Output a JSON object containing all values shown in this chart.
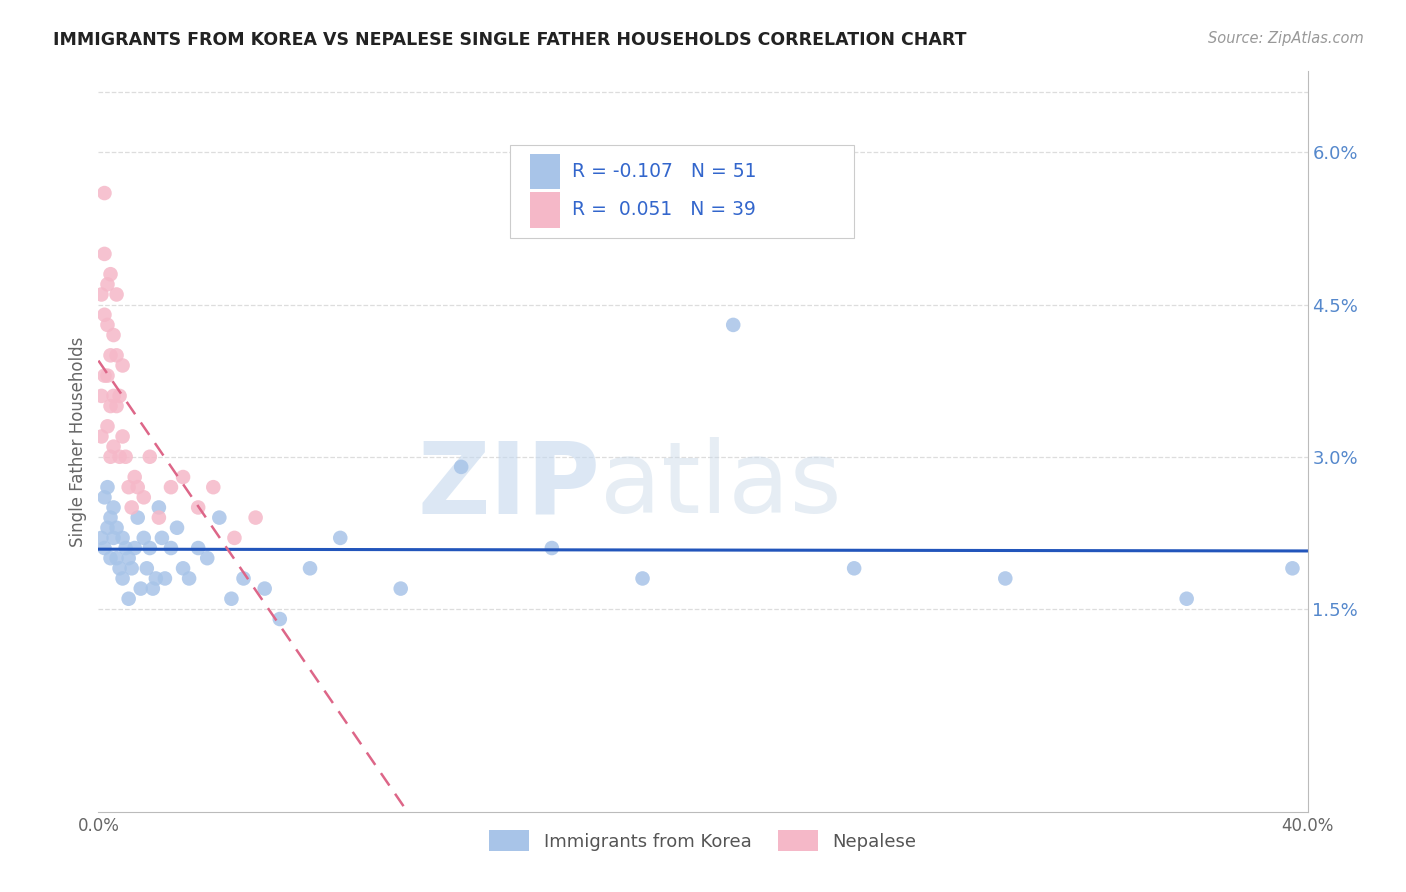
{
  "title": "IMMIGRANTS FROM KOREA VS NEPALESE SINGLE FATHER HOUSEHOLDS CORRELATION CHART",
  "source": "Source: ZipAtlas.com",
  "ylabel": "Single Father Households",
  "xlim": [
    0.0,
    0.4
  ],
  "ylim": [
    -0.005,
    0.068
  ],
  "xticks": [
    0.0,
    0.08,
    0.16,
    0.24,
    0.32,
    0.4
  ],
  "xticklabels": [
    "0.0%",
    "",
    "",
    "",
    "",
    "40.0%"
  ],
  "yticks_right": [
    0.015,
    0.03,
    0.045,
    0.06
  ],
  "yticklabels_right": [
    "1.5%",
    "3.0%",
    "4.5%",
    "6.0%"
  ],
  "legend_korea_R": "-0.107",
  "legend_korea_N": "51",
  "legend_nepal_R": "0.051",
  "legend_nepal_N": "39",
  "korea_color": "#a8c4e8",
  "nepal_color": "#f5b8c8",
  "korea_line_color": "#2255bb",
  "nepal_line_color": "#dd6688",
  "watermark_zip": "ZIP",
  "watermark_atlas": "atlas",
  "background_color": "#ffffff",
  "grid_color": "#dddddd",
  "korea_scatter_x": [
    0.001,
    0.002,
    0.002,
    0.003,
    0.003,
    0.004,
    0.004,
    0.005,
    0.005,
    0.006,
    0.006,
    0.007,
    0.008,
    0.008,
    0.009,
    0.01,
    0.01,
    0.011,
    0.012,
    0.013,
    0.014,
    0.015,
    0.016,
    0.017,
    0.018,
    0.019,
    0.02,
    0.021,
    0.022,
    0.024,
    0.026,
    0.028,
    0.03,
    0.033,
    0.036,
    0.04,
    0.044,
    0.048,
    0.055,
    0.06,
    0.07,
    0.08,
    0.1,
    0.12,
    0.15,
    0.18,
    0.21,
    0.25,
    0.3,
    0.36,
    0.395
  ],
  "korea_scatter_y": [
    0.022,
    0.026,
    0.021,
    0.023,
    0.027,
    0.02,
    0.024,
    0.025,
    0.022,
    0.02,
    0.023,
    0.019,
    0.018,
    0.022,
    0.021,
    0.02,
    0.016,
    0.019,
    0.021,
    0.024,
    0.017,
    0.022,
    0.019,
    0.021,
    0.017,
    0.018,
    0.025,
    0.022,
    0.018,
    0.021,
    0.023,
    0.019,
    0.018,
    0.021,
    0.02,
    0.024,
    0.016,
    0.018,
    0.017,
    0.014,
    0.019,
    0.022,
    0.017,
    0.029,
    0.021,
    0.018,
    0.043,
    0.019,
    0.018,
    0.016,
    0.019
  ],
  "nepal_scatter_x": [
    0.001,
    0.001,
    0.001,
    0.002,
    0.002,
    0.002,
    0.002,
    0.003,
    0.003,
    0.003,
    0.003,
    0.004,
    0.004,
    0.004,
    0.004,
    0.005,
    0.005,
    0.005,
    0.006,
    0.006,
    0.006,
    0.007,
    0.007,
    0.008,
    0.008,
    0.009,
    0.01,
    0.011,
    0.012,
    0.013,
    0.015,
    0.017,
    0.02,
    0.024,
    0.028,
    0.033,
    0.038,
    0.045,
    0.052
  ],
  "nepal_scatter_y": [
    0.032,
    0.036,
    0.046,
    0.038,
    0.044,
    0.05,
    0.056,
    0.033,
    0.038,
    0.043,
    0.047,
    0.03,
    0.035,
    0.04,
    0.048,
    0.031,
    0.036,
    0.042,
    0.035,
    0.04,
    0.046,
    0.03,
    0.036,
    0.032,
    0.039,
    0.03,
    0.027,
    0.025,
    0.028,
    0.027,
    0.026,
    0.03,
    0.024,
    0.027,
    0.028,
    0.025,
    0.027,
    0.022,
    0.024
  ]
}
